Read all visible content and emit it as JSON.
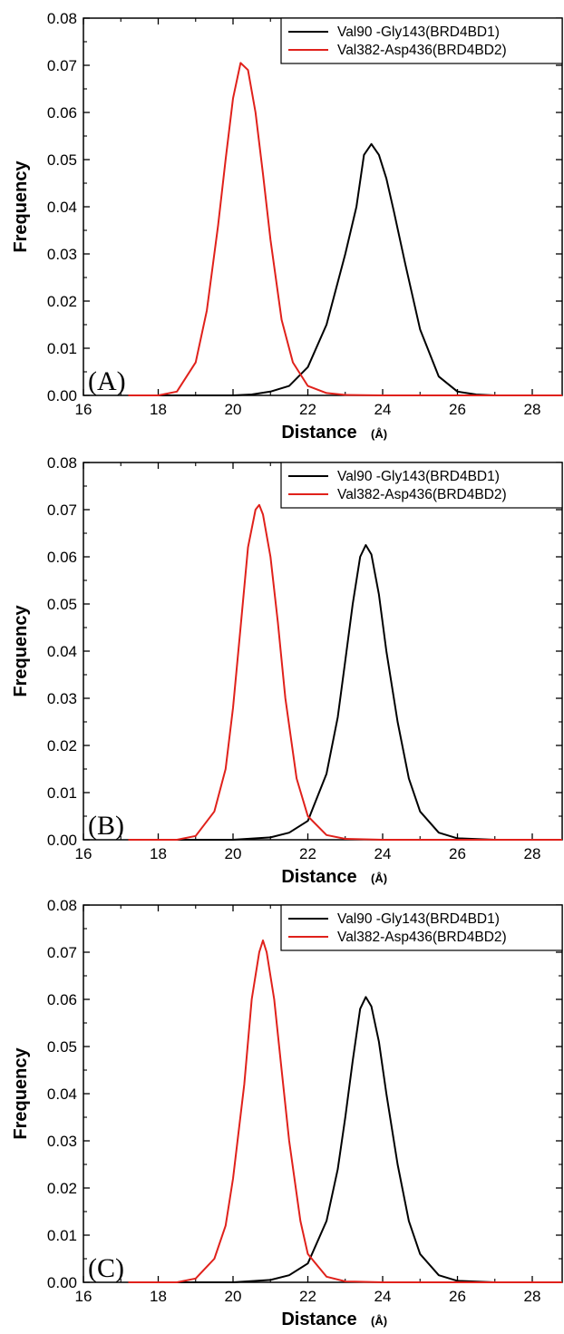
{
  "chart_data": [
    {
      "type": "line",
      "panel_label": "(A)",
      "xlabel": "Distance",
      "xunit": "(Å)",
      "ylabel": "Frequency",
      "xlim": [
        16,
        28.8
      ],
      "ylim": [
        0,
        0.08
      ],
      "xticks": [
        "16",
        "18",
        "20",
        "22",
        "24",
        "26",
        "28"
      ],
      "yticks": [
        "0.00",
        "0.01",
        "0.02",
        "0.03",
        "0.04",
        "0.05",
        "0.06",
        "0.07",
        "0.08"
      ],
      "legend_position": "top-right",
      "series": [
        {
          "name": "Val90 -Gly143(BRD4BD1)",
          "color": "#000000",
          "x": [
            17.2,
            20.0,
            20.5,
            21.0,
            21.5,
            22.0,
            22.5,
            23.0,
            23.3,
            23.5,
            23.7,
            23.9,
            24.1,
            24.3,
            24.6,
            25.0,
            25.5,
            26.0,
            26.5,
            27.0,
            28.0,
            28.8
          ],
          "y": [
            0,
            0,
            0.0002,
            0.0008,
            0.002,
            0.006,
            0.015,
            0.03,
            0.04,
            0.051,
            0.0533,
            0.051,
            0.046,
            0.039,
            0.028,
            0.014,
            0.004,
            0.0008,
            0.0002,
            0,
            0,
            0
          ]
        },
        {
          "name": "Val382-Asp436(BRD4BD2)",
          "color": "#e0211b",
          "x": [
            17.2,
            18.0,
            18.5,
            19.0,
            19.3,
            19.6,
            19.8,
            20.0,
            20.2,
            20.4,
            20.6,
            20.8,
            21.0,
            21.3,
            21.6,
            22.0,
            22.5,
            23.0,
            24.0,
            26.0,
            28.8
          ],
          "y": [
            0,
            0,
            0.0008,
            0.007,
            0.018,
            0.036,
            0.05,
            0.063,
            0.0705,
            0.069,
            0.06,
            0.047,
            0.033,
            0.016,
            0.007,
            0.002,
            0.0005,
            0.0001,
            0,
            0,
            0
          ]
        }
      ]
    },
    {
      "type": "line",
      "panel_label": "(B)",
      "xlabel": "Distance",
      "xunit": "(Å)",
      "ylabel": "Frequency",
      "xlim": [
        16,
        28.8
      ],
      "ylim": [
        0,
        0.08
      ],
      "xticks": [
        "16",
        "18",
        "20",
        "22",
        "24",
        "26",
        "28"
      ],
      "yticks": [
        "0.00",
        "0.01",
        "0.02",
        "0.03",
        "0.04",
        "0.05",
        "0.06",
        "0.07",
        "0.08"
      ],
      "legend_position": "top-right",
      "series": [
        {
          "name": "Val90 -Gly143(BRD4BD1)",
          "color": "#000000",
          "x": [
            17.2,
            20.0,
            21.0,
            21.5,
            22.0,
            22.5,
            22.8,
            23.0,
            23.2,
            23.4,
            23.55,
            23.7,
            23.9,
            24.1,
            24.4,
            24.7,
            25.0,
            25.5,
            26.0,
            27.0,
            28.8
          ],
          "y": [
            0,
            0,
            0.0005,
            0.0015,
            0.004,
            0.014,
            0.026,
            0.038,
            0.05,
            0.06,
            0.0625,
            0.0605,
            0.052,
            0.04,
            0.025,
            0.013,
            0.006,
            0.0015,
            0.0003,
            0,
            0
          ]
        },
        {
          "name": "Val382-Asp436(BRD4BD2)",
          "color": "#e0211b",
          "x": [
            17.2,
            18.5,
            19.0,
            19.5,
            19.8,
            20.0,
            20.2,
            20.4,
            20.6,
            20.7,
            20.8,
            21.0,
            21.2,
            21.4,
            21.7,
            22.0,
            22.5,
            23.0,
            24.0,
            28.8
          ],
          "y": [
            0,
            0,
            0.0008,
            0.006,
            0.015,
            0.028,
            0.045,
            0.062,
            0.07,
            0.071,
            0.069,
            0.06,
            0.046,
            0.03,
            0.013,
            0.005,
            0.001,
            0.0002,
            0,
            0
          ]
        }
      ]
    },
    {
      "type": "line",
      "panel_label": "(C)",
      "xlabel": "Distance",
      "xunit": "(Å)",
      "ylabel": "Frequency",
      "xlim": [
        16,
        28.8
      ],
      "ylim": [
        0,
        0.08
      ],
      "xticks": [
        "16",
        "18",
        "20",
        "22",
        "24",
        "26",
        "28"
      ],
      "yticks": [
        "0.00",
        "0.01",
        "0.02",
        "0.03",
        "0.04",
        "0.05",
        "0.06",
        "0.07",
        "0.08"
      ],
      "legend_position": "top-right",
      "series": [
        {
          "name": "Val90 -Gly143(BRD4BD1)",
          "color": "#000000",
          "x": [
            17.2,
            20.0,
            21.0,
            21.5,
            22.0,
            22.5,
            22.8,
            23.0,
            23.2,
            23.4,
            23.55,
            23.7,
            23.9,
            24.1,
            24.4,
            24.7,
            25.0,
            25.5,
            26.0,
            27.0,
            28.8
          ],
          "y": [
            0,
            0,
            0.0005,
            0.0015,
            0.004,
            0.013,
            0.024,
            0.035,
            0.047,
            0.058,
            0.0605,
            0.0585,
            0.051,
            0.04,
            0.025,
            0.013,
            0.006,
            0.0015,
            0.0003,
            0,
            0
          ]
        },
        {
          "name": "Val382-Asp436(BRD4BD2)",
          "color": "#e0211b",
          "x": [
            17.2,
            18.5,
            19.0,
            19.5,
            19.8,
            20.0,
            20.3,
            20.5,
            20.7,
            20.8,
            20.9,
            21.1,
            21.3,
            21.5,
            21.8,
            22.0,
            22.5,
            23.0,
            24.0,
            28.8
          ],
          "y": [
            0,
            0,
            0.0008,
            0.005,
            0.012,
            0.022,
            0.042,
            0.06,
            0.07,
            0.0725,
            0.07,
            0.06,
            0.045,
            0.03,
            0.013,
            0.006,
            0.0012,
            0.0002,
            0,
            0
          ]
        }
      ]
    }
  ]
}
